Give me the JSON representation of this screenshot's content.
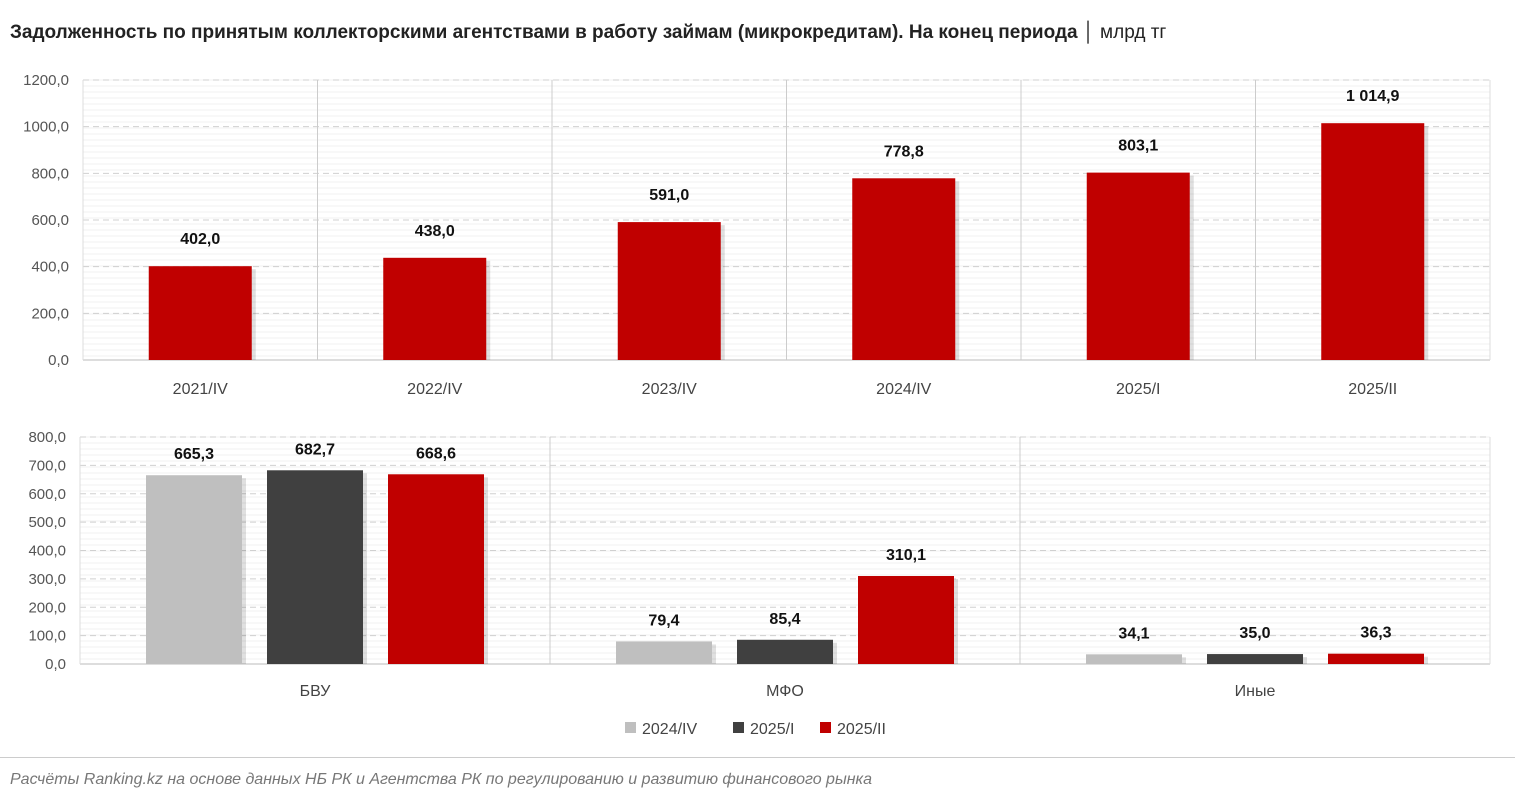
{
  "title": "Задолженность по принятым коллекторскими агентствами в работу займам (микрокредитам). На конец периода",
  "unit": "│ млрд тг",
  "footer": "Расчёты Ranking.kz на основе данных НБ РК и Агентства РК по регулированию и развитию финансового рынка",
  "chart_data": [
    {
      "type": "bar",
      "categories": [
        "2021/IV",
        "2022/IV",
        "2023/IV",
        "2024/IV",
        "2025/I",
        "2025/II"
      ],
      "values": [
        402.0,
        438.0,
        591.0,
        778.8,
        803.1,
        1014.9
      ],
      "data_labels": [
        "402,0",
        "438,0",
        "591,0",
        "778,8",
        "803,1",
        "1 014,9"
      ],
      "ylim": [
        0,
        1200
      ],
      "yticks": [
        "0,0",
        "200,0",
        "400,0",
        "600,0",
        "800,0",
        "1000,0",
        "1200,0"
      ],
      "color": "#c00000",
      "grid": true
    },
    {
      "type": "bar",
      "categories": [
        "БВУ",
        "МФО",
        "Иные"
      ],
      "series": [
        {
          "name": "2024/IV",
          "color": "#bfbfbf",
          "values": [
            665.3,
            79.4,
            34.1
          ],
          "data_labels": [
            "665,3",
            "79,4",
            "34,1"
          ]
        },
        {
          "name": "2025/I",
          "color": "#404040",
          "values": [
            682.7,
            85.4,
            35.0
          ],
          "data_labels": [
            "682,7",
            "85,4",
            "35,0"
          ]
        },
        {
          "name": "2025/II",
          "color": "#c00000",
          "values": [
            668.6,
            310.1,
            36.3
          ],
          "data_labels": [
            "668,6",
            "310,1",
            "36,3"
          ]
        }
      ],
      "ylim": [
        0,
        800
      ],
      "yticks": [
        "0,0",
        "100,0",
        "200,0",
        "300,0",
        "400,0",
        "500,0",
        "600,0",
        "700,0",
        "800,0"
      ],
      "legend": "bottom",
      "grid": true
    }
  ]
}
